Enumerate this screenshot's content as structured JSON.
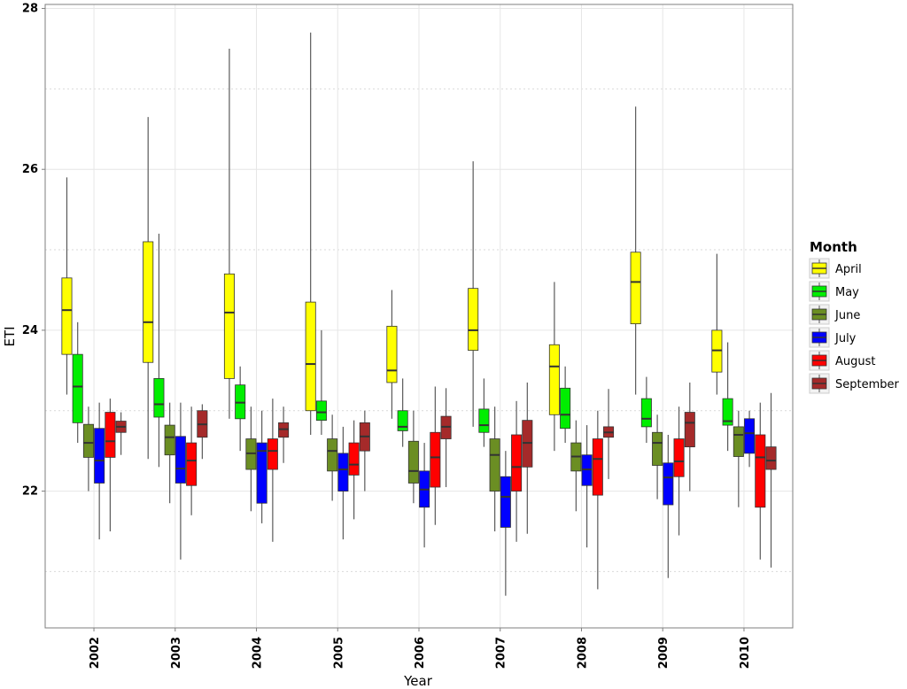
{
  "chart_data": {
    "type": "boxplot",
    "title": "",
    "xlabel": "Year",
    "ylabel": "ETI",
    "ylim": [
      20.3,
      28.05
    ],
    "yticks": [
      22,
      24,
      26,
      28
    ],
    "categories": [
      "2002",
      "2003",
      "2004",
      "2005",
      "2006",
      "2007",
      "2008",
      "2009",
      "2010"
    ],
    "legend": {
      "title": "Month",
      "position": "right"
    },
    "series": [
      {
        "name": "April",
        "color": "#ffff00",
        "boxes": [
          {
            "min": 23.2,
            "q1": 23.7,
            "median": 24.25,
            "q3": 24.65,
            "max": 25.9
          },
          {
            "min": 22.4,
            "q1": 23.6,
            "median": 24.1,
            "q3": 25.1,
            "max": 26.65
          },
          {
            "min": 22.9,
            "q1": 23.4,
            "median": 24.22,
            "q3": 24.7,
            "max": 27.5
          },
          {
            "min": 22.7,
            "q1": 23.0,
            "median": 23.58,
            "q3": 24.35,
            "max": 27.7
          },
          {
            "min": 22.9,
            "q1": 23.35,
            "median": 23.5,
            "q3": 24.05,
            "max": 24.5
          },
          {
            "min": 22.8,
            "q1": 23.75,
            "median": 24.0,
            "q3": 24.52,
            "max": 26.1
          },
          {
            "min": 22.5,
            "q1": 22.95,
            "median": 23.55,
            "q3": 23.82,
            "max": 24.6
          },
          {
            "min": 23.2,
            "q1": 24.08,
            "median": 24.6,
            "q3": 24.97,
            "max": 26.78
          },
          {
            "min": 23.2,
            "q1": 23.48,
            "median": 23.75,
            "q3": 24.0,
            "max": 24.95
          }
        ]
      },
      {
        "name": "May",
        "color": "#00ee00",
        "boxes": [
          {
            "min": 22.6,
            "q1": 22.85,
            "median": 23.3,
            "q3": 23.7,
            "max": 24.1
          },
          {
            "min": 22.3,
            "q1": 22.92,
            "median": 23.08,
            "q3": 23.4,
            "max": 25.2
          },
          {
            "min": 22.5,
            "q1": 22.9,
            "median": 23.1,
            "q3": 23.32,
            "max": 23.55
          },
          {
            "min": 22.7,
            "q1": 22.88,
            "median": 22.98,
            "q3": 23.12,
            "max": 24.0
          },
          {
            "min": 22.55,
            "q1": 22.75,
            "median": 22.8,
            "q3": 23.0,
            "max": 23.4
          },
          {
            "min": 22.55,
            "q1": 22.73,
            "median": 22.82,
            "q3": 23.02,
            "max": 23.4
          },
          {
            "min": 22.6,
            "q1": 22.78,
            "median": 22.95,
            "q3": 23.28,
            "max": 23.55
          },
          {
            "min": 22.6,
            "q1": 22.8,
            "median": 22.9,
            "q3": 23.15,
            "max": 23.42
          },
          {
            "min": 22.5,
            "q1": 22.82,
            "median": 22.87,
            "q3": 23.15,
            "max": 23.85
          }
        ]
      },
      {
        "name": "June",
        "color": "#6b8e23",
        "boxes": [
          {
            "min": 22.0,
            "q1": 22.42,
            "median": 22.6,
            "q3": 22.83,
            "max": 23.05
          },
          {
            "min": 21.85,
            "q1": 22.45,
            "median": 22.67,
            "q3": 22.82,
            "max": 23.1
          },
          {
            "min": 21.75,
            "q1": 22.27,
            "median": 22.47,
            "q3": 22.65,
            "max": 23.05
          },
          {
            "min": 21.88,
            "q1": 22.25,
            "median": 22.5,
            "q3": 22.65,
            "max": 22.95
          },
          {
            "min": 21.85,
            "q1": 22.1,
            "median": 22.25,
            "q3": 22.62,
            "max": 23.0
          },
          {
            "min": 21.5,
            "q1": 22.0,
            "median": 22.45,
            "q3": 22.65,
            "max": 23.05
          },
          {
            "min": 21.75,
            "q1": 22.25,
            "median": 22.43,
            "q3": 22.6,
            "max": 22.88
          },
          {
            "min": 21.9,
            "q1": 22.32,
            "median": 22.6,
            "q3": 22.73,
            "max": 22.95
          },
          {
            "min": 21.8,
            "q1": 22.43,
            "median": 22.7,
            "q3": 22.8,
            "max": 23.0
          }
        ]
      },
      {
        "name": "July",
        "color": "#0000ff",
        "boxes": [
          {
            "min": 21.4,
            "q1": 22.1,
            "median": 22.38,
            "q3": 22.78,
            "max": 23.1
          },
          {
            "min": 21.15,
            "q1": 22.1,
            "median": 22.28,
            "q3": 22.68,
            "max": 23.1
          },
          {
            "min": 21.6,
            "q1": 21.85,
            "median": 22.5,
            "q3": 22.6,
            "max": 23.0
          },
          {
            "min": 21.4,
            "q1": 22.0,
            "median": 22.27,
            "q3": 22.47,
            "max": 22.8
          },
          {
            "min": 21.3,
            "q1": 21.8,
            "median": 22.02,
            "q3": 22.25,
            "max": 22.6
          },
          {
            "min": 20.7,
            "q1": 21.55,
            "median": 21.93,
            "q3": 22.18,
            "max": 22.5
          },
          {
            "min": 21.3,
            "q1": 22.07,
            "median": 22.27,
            "q3": 22.45,
            "max": 22.82
          },
          {
            "min": 20.92,
            "q1": 21.83,
            "median": 22.17,
            "q3": 22.35,
            "max": 22.7
          },
          {
            "min": 22.3,
            "q1": 22.47,
            "median": 22.72,
            "q3": 22.9,
            "max": 23.0
          }
        ]
      },
      {
        "name": "August",
        "color": "#ff0000",
        "boxes": [
          {
            "min": 21.5,
            "q1": 22.42,
            "median": 22.62,
            "q3": 22.98,
            "max": 23.15
          },
          {
            "min": 21.7,
            "q1": 22.07,
            "median": 22.38,
            "q3": 22.6,
            "max": 23.05
          },
          {
            "min": 21.37,
            "q1": 22.27,
            "median": 22.5,
            "q3": 22.65,
            "max": 23.15
          },
          {
            "min": 21.65,
            "q1": 22.2,
            "median": 22.33,
            "q3": 22.6,
            "max": 22.88
          },
          {
            "min": 21.58,
            "q1": 22.05,
            "median": 22.42,
            "q3": 22.73,
            "max": 23.3
          },
          {
            "min": 21.37,
            "q1": 22.0,
            "median": 22.3,
            "q3": 22.7,
            "max": 23.12
          },
          {
            "min": 20.78,
            "q1": 21.95,
            "median": 22.4,
            "q3": 22.65,
            "max": 23.0
          },
          {
            "min": 21.45,
            "q1": 22.18,
            "median": 22.37,
            "q3": 22.65,
            "max": 23.05
          },
          {
            "min": 21.15,
            "q1": 21.8,
            "median": 22.42,
            "q3": 22.7,
            "max": 23.1
          }
        ]
      },
      {
        "name": "September",
        "color": "#a52a2a",
        "boxes": [
          {
            "min": 22.45,
            "q1": 22.73,
            "median": 22.8,
            "q3": 22.87,
            "max": 22.98
          },
          {
            "min": 22.4,
            "q1": 22.67,
            "median": 22.83,
            "q3": 23.0,
            "max": 23.08
          },
          {
            "min": 22.35,
            "q1": 22.67,
            "median": 22.77,
            "q3": 22.85,
            "max": 23.05
          },
          {
            "min": 22.0,
            "q1": 22.5,
            "median": 22.68,
            "q3": 22.85,
            "max": 23.0
          },
          {
            "min": 22.05,
            "q1": 22.65,
            "median": 22.8,
            "q3": 22.93,
            "max": 23.28
          },
          {
            "min": 21.47,
            "q1": 22.3,
            "median": 22.6,
            "q3": 22.88,
            "max": 23.35
          },
          {
            "min": 22.15,
            "q1": 22.67,
            "median": 22.73,
            "q3": 22.8,
            "max": 23.27
          },
          {
            "min": 22.0,
            "q1": 22.55,
            "median": 22.85,
            "q3": 22.98,
            "max": 23.35
          },
          {
            "min": 21.05,
            "q1": 22.27,
            "median": 22.38,
            "q3": 22.55,
            "max": 23.22
          }
        ]
      }
    ]
  }
}
